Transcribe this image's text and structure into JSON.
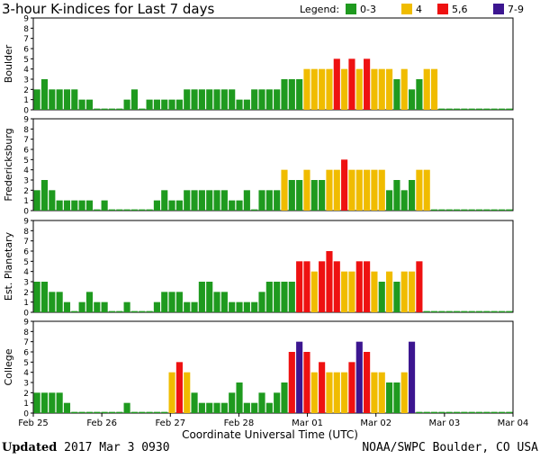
{
  "header": {
    "title": "3-hour K-indices for Last 7 days",
    "legend_label": "Legend:",
    "legend": [
      {
        "label": "0-3",
        "color": "#1f9a1f"
      },
      {
        "label": "4",
        "color": "#f0bc00"
      },
      {
        "label": "5,6",
        "color": "#ee1111"
      },
      {
        "label": "7-9",
        "color": "#3c1690"
      }
    ]
  },
  "footer": {
    "updated_label": "Updated",
    "updated_value": "2017 Mar  3 0930",
    "source": "NOAA/SWPC Boulder, CO USA"
  },
  "chart_data": {
    "type": "bar",
    "title": "3-hour K-indices for Last 7 days",
    "xlabel": "Coordinate Universal Time (UTC)",
    "x_ticks": [
      "Feb 25",
      "Feb 26",
      "Feb 27",
      "Feb 28",
      "Mar 01",
      "Mar 02",
      "Mar 03",
      "Mar 04"
    ],
    "ylim": [
      0,
      9
    ],
    "y_ticks": [
      0,
      1,
      2,
      3,
      4,
      5,
      6,
      7,
      8,
      9
    ],
    "bins_per_day": 8,
    "color_scale": [
      {
        "range": [
          0,
          3
        ],
        "color": "#1f9a1f"
      },
      {
        "range": [
          4,
          4
        ],
        "color": "#f0bc00"
      },
      {
        "range": [
          5,
          6
        ],
        "color": "#ee1111"
      },
      {
        "range": [
          7,
          9
        ],
        "color": "#3c1690"
      }
    ],
    "series": [
      {
        "name": "Boulder",
        "values": [
          2,
          3,
          2,
          2,
          2,
          2,
          1,
          1,
          0,
          0,
          0,
          0,
          1,
          2,
          0,
          1,
          1,
          1,
          1,
          1,
          2,
          2,
          2,
          2,
          2,
          2,
          2,
          1,
          1,
          2,
          2,
          2,
          2,
          3,
          3,
          3,
          4,
          4,
          4,
          4,
          5,
          4,
          5,
          4,
          5,
          4,
          4,
          4,
          3,
          4,
          2,
          3,
          4,
          4,
          0,
          0,
          0,
          0,
          0,
          0,
          0,
          0,
          0,
          0
        ]
      },
      {
        "name": "Fredericksburg",
        "values": [
          2,
          3,
          2,
          1,
          1,
          1,
          1,
          1,
          0,
          1,
          0,
          0,
          0,
          0,
          0,
          0,
          1,
          2,
          1,
          1,
          2,
          2,
          2,
          2,
          2,
          2,
          1,
          1,
          2,
          0,
          2,
          2,
          2,
          4,
          3,
          3,
          4,
          3,
          3,
          4,
          4,
          5,
          4,
          4,
          4,
          4,
          4,
          2,
          3,
          2,
          3,
          4,
          4,
          0,
          0,
          0,
          0,
          0,
          0,
          0,
          0,
          0,
          0,
          0
        ]
      },
      {
        "name": "Est. Planetary",
        "values": [
          3,
          3,
          2,
          2,
          1,
          0,
          1,
          2,
          1,
          1,
          0,
          0,
          1,
          0,
          0,
          0,
          1,
          2,
          2,
          2,
          1,
          1,
          3,
          3,
          2,
          2,
          1,
          1,
          1,
          1,
          2,
          3,
          3,
          3,
          3,
          5,
          5,
          4,
          5,
          6,
          5,
          4,
          4,
          5,
          5,
          4,
          3,
          4,
          3,
          4,
          4,
          5,
          0,
          0,
          0,
          0,
          0,
          0,
          0,
          0,
          0,
          0,
          0,
          0
        ]
      },
      {
        "name": "College",
        "values": [
          2,
          2,
          2,
          2,
          1,
          0,
          0,
          0,
          0,
          0,
          0,
          0,
          1,
          0,
          0,
          0,
          0,
          0,
          4,
          5,
          4,
          2,
          1,
          1,
          1,
          1,
          2,
          3,
          1,
          1,
          2,
          1,
          2,
          3,
          6,
          7,
          6,
          4,
          5,
          4,
          4,
          4,
          5,
          7,
          6,
          4,
          4,
          3,
          3,
          4,
          7,
          0,
          0,
          0,
          0,
          0,
          0,
          0,
          0,
          0,
          0,
          0,
          0,
          0
        ]
      }
    ]
  }
}
